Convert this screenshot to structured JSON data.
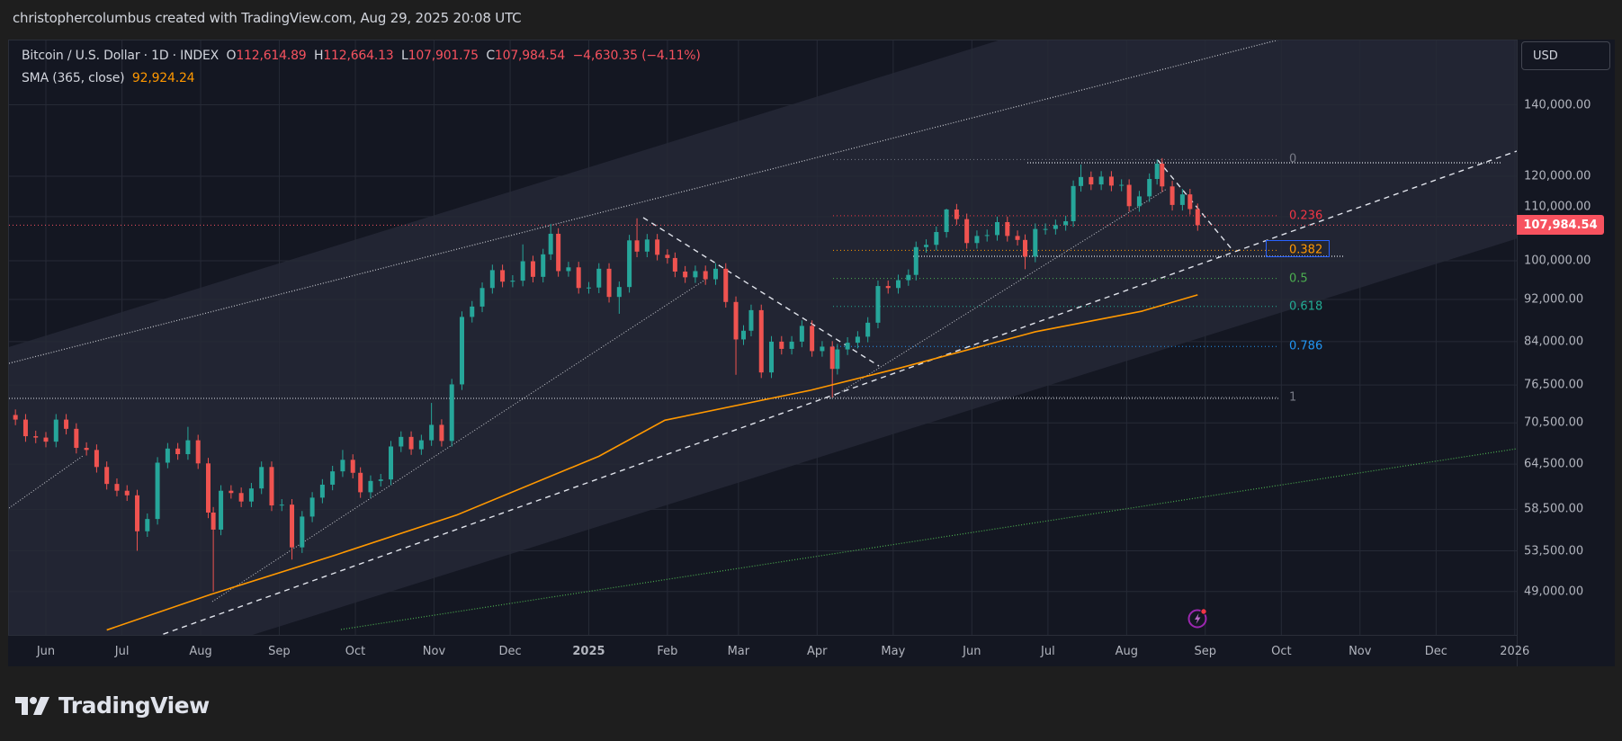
{
  "header": {
    "attribution": "christophercolumbus created with TradingView.com, Aug 29, 2025 20:08 UTC"
  },
  "legend": {
    "symbol": "Bitcoin / U.S. Dollar · 1D · INDEX",
    "open_prefix": "O",
    "open": "112,614.89",
    "high_prefix": "H",
    "high": "112,664.13",
    "low_prefix": "L",
    "low": "107,901.75",
    "close_prefix": "C",
    "close": "107,984.54",
    "change": "−4,630.35 (−4.11%)",
    "sma_label": "SMA (365, close)",
    "sma_value": "92,924.24"
  },
  "price_axis": {
    "currency": "USD",
    "scale": "log",
    "labels": [
      "140,000.00",
      "120,000.00",
      "110,000.00",
      "100,000.00",
      "92,000.00",
      "84,000.00",
      "76,500.00",
      "70,500.00",
      "64,500.00",
      "58,500.00",
      "53,500.00",
      "49,000.00"
    ],
    "values": [
      140000,
      120000,
      110000,
      100000,
      92000,
      84000,
      76500,
      70500,
      64500,
      58500,
      53500,
      49000
    ],
    "last_price_label": "107,984.54",
    "last_price": 107984.54
  },
  "time_axis": {
    "ticks": [
      {
        "label": "Jun",
        "date": "2024-06-01"
      },
      {
        "label": "Jul",
        "date": "2024-07-01"
      },
      {
        "label": "Aug",
        "date": "2024-08-01"
      },
      {
        "label": "Sep",
        "date": "2024-09-01"
      },
      {
        "label": "Oct",
        "date": "2024-10-01"
      },
      {
        "label": "Nov",
        "date": "2024-11-01"
      },
      {
        "label": "Dec",
        "date": "2024-12-01"
      },
      {
        "label": "2025",
        "date": "2025-01-01"
      },
      {
        "label": "Feb",
        "date": "2025-02-01"
      },
      {
        "label": "Mar",
        "date": "2025-03-01"
      },
      {
        "label": "Apr",
        "date": "2025-04-01"
      },
      {
        "label": "May",
        "date": "2025-05-01"
      },
      {
        "label": "Jun",
        "date": "2025-06-01"
      },
      {
        "label": "Jul",
        "date": "2025-07-01"
      },
      {
        "label": "Aug",
        "date": "2025-08-01"
      },
      {
        "label": "Sep",
        "date": "2025-09-01"
      },
      {
        "label": "Oct",
        "date": "2025-10-01"
      },
      {
        "label": "Nov",
        "date": "2025-11-01"
      },
      {
        "label": "Dec",
        "date": "2025-12-01"
      },
      {
        "label": "2026",
        "date": "2026-01-01"
      }
    ]
  },
  "fib": {
    "high": 124400,
    "low": 74500,
    "levels": [
      {
        "label": "0",
        "ratio": 0,
        "color": "#787b86"
      },
      {
        "label": "0.236",
        "ratio": 0.236,
        "color": "#f23645"
      },
      {
        "label": "0.382",
        "ratio": 0.382,
        "color": "#ff9800"
      },
      {
        "label": "0.5",
        "ratio": 0.5,
        "color": "#4caf50"
      },
      {
        "label": "0.618",
        "ratio": 0.618,
        "color": "#22ab94"
      },
      {
        "label": "0.786",
        "ratio": 0.786,
        "color": "#2196f3"
      },
      {
        "label": "1",
        "ratio": 1,
        "color": "#787b86"
      }
    ]
  },
  "colors": {
    "up": "#26a69a",
    "down": "#ef5350",
    "sma": "#ff9800",
    "last_price": "#f7525f",
    "background": "#141722",
    "page": "#1e1e1e"
  },
  "chart_data": {
    "type": "candlestick",
    "interval": "1D",
    "yscale": "log",
    "candles_format": [
      "date",
      "close",
      "low",
      "high"
    ],
    "candles": [
      [
        "2024-05-20",
        71000
      ],
      [
        "2024-05-24",
        68500
      ],
      [
        "2024-05-28",
        68300
      ],
      [
        "2024-06-01",
        67700
      ],
      [
        "2024-06-05",
        71000
      ],
      [
        "2024-06-09",
        69600
      ],
      [
        "2024-06-13",
        66800
      ],
      [
        "2024-06-17",
        66500
      ],
      [
        "2024-06-21",
        64100
      ],
      [
        "2024-06-25",
        61800
      ],
      [
        "2024-06-29",
        60900
      ],
      [
        "2024-07-03",
        60300
      ],
      [
        "2024-07-07",
        55800,
        53500
      ],
      [
        "2024-07-11",
        57300
      ],
      [
        "2024-07-15",
        64700
      ],
      [
        "2024-07-19",
        66700
      ],
      [
        "2024-07-23",
        65900
      ],
      [
        "2024-07-27",
        67900,
        null,
        69900
      ],
      [
        "2024-07-31",
        64600
      ],
      [
        "2024-08-04",
        58100
      ],
      [
        "2024-08-06",
        56000,
        49000
      ],
      [
        "2024-08-09",
        60900
      ],
      [
        "2024-08-13",
        60600
      ],
      [
        "2024-08-17",
        59500
      ],
      [
        "2024-08-21",
        61200
      ],
      [
        "2024-08-25",
        64100
      ],
      [
        "2024-08-29",
        59000
      ],
      [
        "2024-09-02",
        59100
      ],
      [
        "2024-09-06",
        53900,
        52500
      ],
      [
        "2024-09-10",
        57600
      ],
      [
        "2024-09-14",
        60000
      ],
      [
        "2024-09-18",
        61700
      ],
      [
        "2024-09-22",
        63500
      ],
      [
        "2024-09-26",
        65100,
        null,
        66500
      ],
      [
        "2024-09-30",
        63300
      ],
      [
        "2024-10-03",
        60700
      ],
      [
        "2024-10-07",
        62200
      ],
      [
        "2024-10-11",
        62400
      ],
      [
        "2024-10-15",
        67000
      ],
      [
        "2024-10-19",
        68400
      ],
      [
        "2024-10-23",
        66600
      ],
      [
        "2024-10-27",
        67900
      ],
      [
        "2024-10-31",
        70200,
        null,
        73600
      ],
      [
        "2024-11-04",
        67800
      ],
      [
        "2024-11-08",
        76600
      ],
      [
        "2024-11-12",
        88600
      ],
      [
        "2024-11-16",
        90600
      ],
      [
        "2024-11-20",
        94300
      ],
      [
        "2024-11-24",
        98000
      ],
      [
        "2024-11-28",
        95600
      ],
      [
        "2024-12-02",
        95800
      ],
      [
        "2024-12-06",
        99900,
        null,
        103600
      ],
      [
        "2024-12-10",
        96600
      ],
      [
        "2024-12-14",
        101400
      ],
      [
        "2024-12-17",
        106000,
        null,
        108300
      ],
      [
        "2024-12-20",
        97800
      ],
      [
        "2024-12-24",
        98600
      ],
      [
        "2024-12-28",
        94300
      ],
      [
        "2025-01-01",
        94400
      ],
      [
        "2025-01-05",
        98300
      ],
      [
        "2025-01-09",
        92500
      ],
      [
        "2025-01-13",
        94500,
        89200
      ],
      [
        "2025-01-17",
        104500
      ],
      [
        "2025-01-20",
        102000,
        null,
        109600
      ],
      [
        "2025-01-24",
        104700
      ],
      [
        "2025-01-28",
        101300
      ],
      [
        "2025-02-01",
        100600
      ],
      [
        "2025-02-04",
        97700
      ],
      [
        "2025-02-08",
        96500
      ],
      [
        "2025-02-12",
        97800
      ],
      [
        "2025-02-16",
        96100
      ],
      [
        "2025-02-20",
        98300
      ],
      [
        "2025-02-24",
        91500
      ],
      [
        "2025-02-28",
        84400,
        78200
      ],
      [
        "2025-03-03",
        86000
      ],
      [
        "2025-03-06",
        89900
      ],
      [
        "2025-03-10",
        78600
      ],
      [
        "2025-03-14",
        84000
      ],
      [
        "2025-03-18",
        82700
      ],
      [
        "2025-03-22",
        84000
      ],
      [
        "2025-03-26",
        86900
      ],
      [
        "2025-03-30",
        82300
      ],
      [
        "2025-04-03",
        83100
      ],
      [
        "2025-04-07",
        79200,
        74500
      ],
      [
        "2025-04-09",
        82600
      ],
      [
        "2025-04-13",
        83800
      ],
      [
        "2025-04-17",
        84900
      ],
      [
        "2025-04-21",
        87500
      ],
      [
        "2025-04-25",
        94700
      ],
      [
        "2025-04-29",
        94300
      ],
      [
        "2025-05-03",
        95900
      ],
      [
        "2025-05-07",
        97000
      ],
      [
        "2025-05-10",
        103000
      ],
      [
        "2025-05-14",
        103500
      ],
      [
        "2025-05-18",
        106400
      ],
      [
        "2025-05-22",
        111700,
        null,
        111900
      ],
      [
        "2025-05-26",
        109400
      ],
      [
        "2025-05-30",
        103900
      ],
      [
        "2025-06-03",
        105500
      ],
      [
        "2025-06-07",
        105700
      ],
      [
        "2025-06-11",
        108700
      ],
      [
        "2025-06-15",
        105500
      ],
      [
        "2025-06-19",
        104600
      ],
      [
        "2025-06-22",
        100900,
        98200
      ],
      [
        "2025-06-26",
        107100
      ],
      [
        "2025-06-30",
        107100
      ],
      [
        "2025-07-04",
        108000
      ],
      [
        "2025-07-08",
        108900
      ],
      [
        "2025-07-11",
        117500
      ],
      [
        "2025-07-14",
        119800,
        null,
        123100
      ],
      [
        "2025-07-18",
        117900
      ],
      [
        "2025-07-22",
        119900
      ],
      [
        "2025-07-26",
        117600
      ],
      [
        "2025-07-30",
        117800
      ],
      [
        "2025-08-02",
        112500
      ],
      [
        "2025-08-06",
        114900
      ],
      [
        "2025-08-10",
        119300
      ],
      [
        "2025-08-13",
        123300,
        null,
        124400
      ],
      [
        "2025-08-15",
        117400
      ],
      [
        "2025-08-19",
        112800
      ],
      [
        "2025-08-23",
        115400
      ],
      [
        "2025-08-26",
        111800
      ],
      [
        "2025-08-29",
        107985
      ]
    ],
    "sma_365": [
      [
        "2024-06-25",
        45100
      ],
      [
        "2024-08-05",
        48700
      ],
      [
        "2024-09-23",
        53000
      ],
      [
        "2024-11-10",
        57800
      ],
      [
        "2025-01-05",
        65600
      ],
      [
        "2025-01-31",
        70900
      ],
      [
        "2025-03-29",
        75600
      ],
      [
        "2025-05-04",
        79400
      ],
      [
        "2025-06-26",
        85800
      ],
      [
        "2025-08-07",
        89700
      ],
      [
        "2025-08-29",
        92924
      ]
    ]
  },
  "brand": {
    "name": "TradingView"
  },
  "event_marker": {
    "icon": "lightning-icon"
  }
}
